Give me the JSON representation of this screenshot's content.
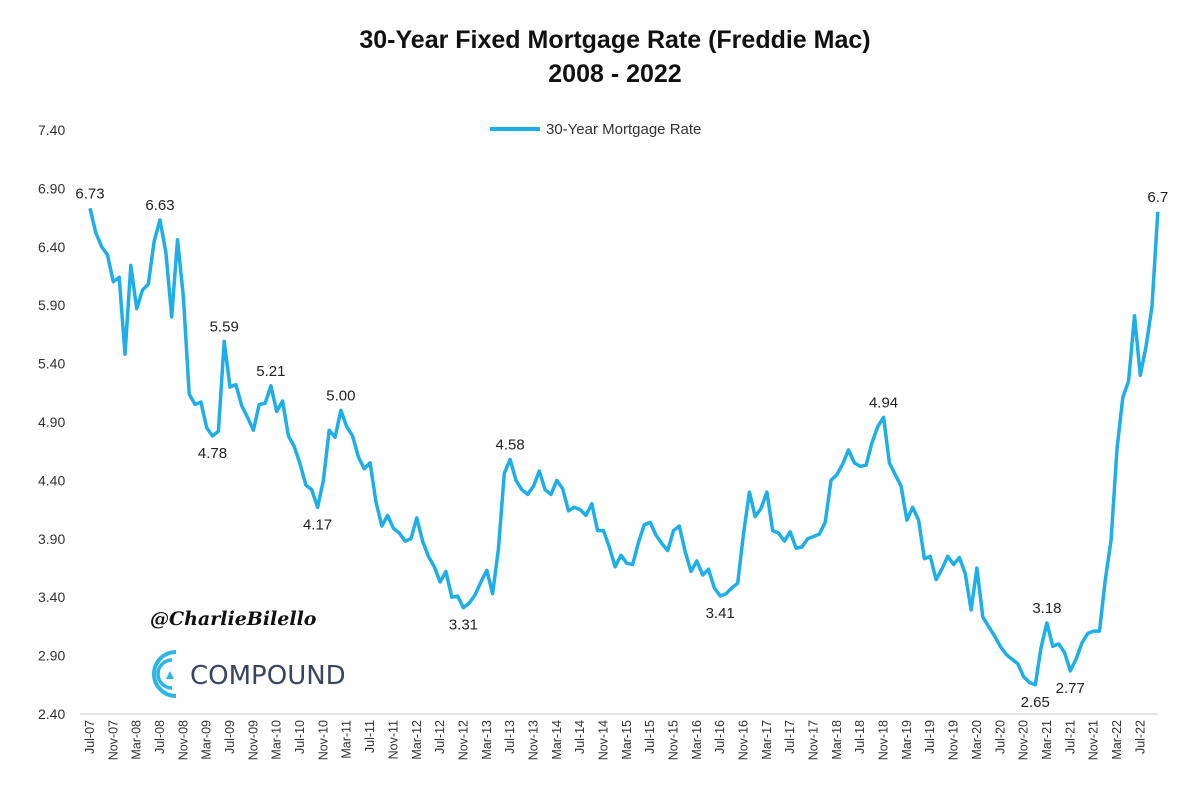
{
  "chart_data": {
    "type": "line",
    "title": "30-Year Fixed Mortgage Rate (Freddie Mac)",
    "subtitle": "2008 - 2022",
    "xlabel": "",
    "ylabel": "",
    "ylim": [
      2.4,
      7.4
    ],
    "yticks": [
      "7.40",
      "6.90",
      "6.40",
      "5.90",
      "5.40",
      "4.90",
      "4.40",
      "3.90",
      "3.40",
      "2.90",
      "2.40"
    ],
    "grid": false,
    "legend_position": "top-center",
    "color": "#1eaee8",
    "xticks": [
      "Jul-07",
      "Nov-07",
      "Mar-08",
      "Jul-08",
      "Nov-08",
      "Mar-09",
      "Jul-09",
      "Nov-09",
      "Mar-10",
      "Jul-10",
      "Nov-10",
      "Mar-11",
      "Jul-11",
      "Nov-11",
      "Mar-12",
      "Jul-12",
      "Nov-12",
      "Mar-13",
      "Jul-13",
      "Nov-13",
      "Mar-14",
      "Jul-14",
      "Nov-14",
      "Mar-15",
      "Jul-15",
      "Nov-15",
      "Mar-16",
      "Jul-16",
      "Nov-16",
      "Mar-17",
      "Jul-17",
      "Nov-17",
      "Mar-18",
      "Jul-18",
      "Nov-18",
      "Mar-19",
      "Jul-19",
      "Nov-19",
      "Mar-20",
      "Jul-20",
      "Nov-20",
      "Mar-21",
      "Jul-21",
      "Nov-21",
      "Mar-22",
      "Jul-22"
    ],
    "x_start": "2007-07",
    "x_end": "2022-10",
    "series": [
      {
        "name": "30-Year Mortgage Rate",
        "frequency": "monthly",
        "values": [
          6.73,
          6.52,
          6.4,
          6.33,
          6.1,
          6.14,
          5.48,
          6.24,
          5.87,
          6.03,
          6.08,
          6.45,
          6.63,
          6.35,
          5.8,
          6.46,
          5.97,
          5.14,
          5.05,
          5.07,
          4.85,
          4.78,
          4.82,
          5.59,
          5.2,
          5.22,
          5.04,
          4.94,
          4.83,
          5.05,
          5.06,
          5.21,
          4.99,
          5.08,
          4.78,
          4.69,
          4.54,
          4.36,
          4.32,
          4.17,
          4.4,
          4.83,
          4.77,
          5.0,
          4.86,
          4.78,
          4.6,
          4.5,
          4.55,
          4.22,
          4.01,
          4.1,
          3.99,
          3.95,
          3.88,
          3.9,
          4.08,
          3.88,
          3.75,
          3.66,
          3.53,
          3.62,
          3.4,
          3.41,
          3.31,
          3.35,
          3.42,
          3.53,
          3.63,
          3.43,
          3.81,
          4.46,
          4.58,
          4.4,
          4.32,
          4.28,
          4.35,
          4.48,
          4.32,
          4.28,
          4.4,
          4.33,
          4.14,
          4.17,
          4.15,
          4.1,
          4.2,
          3.97,
          3.97,
          3.83,
          3.66,
          3.76,
          3.69,
          3.68,
          3.87,
          4.02,
          4.04,
          3.93,
          3.86,
          3.8,
          3.97,
          4.01,
          3.79,
          3.62,
          3.71,
          3.59,
          3.64,
          3.48,
          3.41,
          3.43,
          3.48,
          3.52,
          3.94,
          4.3,
          4.09,
          4.16,
          4.3,
          3.97,
          3.95,
          3.88,
          3.96,
          3.82,
          3.83,
          3.9,
          3.92,
          3.94,
          4.04,
          4.4,
          4.45,
          4.54,
          4.66,
          4.55,
          4.52,
          4.53,
          4.72,
          4.86,
          4.94,
          4.55,
          4.45,
          4.35,
          4.06,
          4.17,
          4.06,
          3.73,
          3.75,
          3.55,
          3.64,
          3.75,
          3.68,
          3.74,
          3.6,
          3.29,
          3.65,
          3.23,
          3.15,
          3.07,
          2.98,
          2.91,
          2.87,
          2.83,
          2.72,
          2.67,
          2.65,
          2.97,
          3.18,
          2.98,
          3.0,
          2.93,
          2.77,
          2.87,
          3.01,
          3.09,
          3.11,
          3.11,
          3.55,
          3.89,
          4.67,
          5.11,
          5.25,
          5.81,
          5.3,
          5.55,
          5.89,
          6.7
        ]
      }
    ],
    "annotations": [
      {
        "date": "2007-07",
        "value": 6.73,
        "text": "6.73",
        "pos": "above"
      },
      {
        "date": "2008-07",
        "value": 6.63,
        "text": "6.63",
        "pos": "above"
      },
      {
        "date": "2009-06",
        "value": 5.59,
        "text": "5.59",
        "pos": "above"
      },
      {
        "date": "2009-04",
        "value": 4.78,
        "text": "4.78",
        "pos": "below"
      },
      {
        "date": "2010-02",
        "value": 5.21,
        "text": "5.21",
        "pos": "above"
      },
      {
        "date": "2010-10",
        "value": 4.17,
        "text": "4.17",
        "pos": "below"
      },
      {
        "date": "2011-02",
        "value": 5.0,
        "text": "5.00",
        "pos": "above"
      },
      {
        "date": "2012-11",
        "value": 3.31,
        "text": "3.31",
        "pos": "below"
      },
      {
        "date": "2013-07",
        "value": 4.58,
        "text": "4.58",
        "pos": "above"
      },
      {
        "date": "2016-07",
        "value": 3.41,
        "text": "3.41",
        "pos": "below"
      },
      {
        "date": "2018-11",
        "value": 4.94,
        "text": "4.94",
        "pos": "above"
      },
      {
        "date": "2021-01",
        "value": 2.65,
        "text": "2.65",
        "pos": "below"
      },
      {
        "date": "2021-03",
        "value": 3.18,
        "text": "3.18",
        "pos": "above"
      },
      {
        "date": "2021-07",
        "value": 2.77,
        "text": "2.77",
        "pos": "below"
      },
      {
        "date": "2022-10",
        "value": 6.7,
        "text": "6.7",
        "pos": "above"
      }
    ]
  },
  "watermark": {
    "handle": "@CharlieBilello",
    "brand": "COMPOUND",
    "brand_color": "#2db5e8"
  }
}
